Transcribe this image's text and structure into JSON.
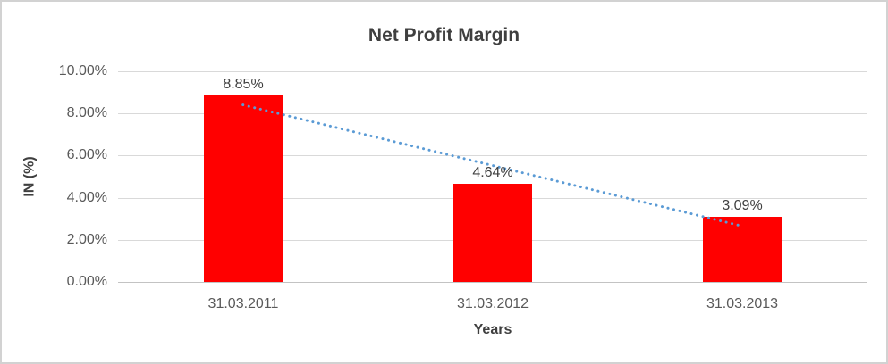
{
  "window": {
    "background": "#FFFFFF",
    "border_color": "#D2D2D2"
  },
  "chart_data": {
    "type": "bar",
    "title": "Net Profit Margin",
    "xlabel": "Years",
    "ylabel": "IN (%)",
    "categories": [
      "31.03.2011",
      "31.03.2012",
      "31.03.2013"
    ],
    "values": [
      8.85,
      4.64,
      3.09
    ],
    "value_labels": [
      "8.85%",
      "4.64%",
      "3.09%"
    ],
    "ylim": [
      0,
      10
    ],
    "ytick_values": [
      0,
      2,
      4,
      6,
      8,
      10
    ],
    "ytick_labels": [
      "0.00%",
      "2.00%",
      "4.00%",
      "6.00%",
      "8.00%",
      "10.00%"
    ],
    "grid": true,
    "legend": false,
    "bar_color": "#FF0000",
    "trendline": {
      "type": "linear",
      "style": "dotted",
      "color": "#5B9BD5"
    },
    "colors": {
      "title": "#3F3F3F",
      "tick_labels": "#595959",
      "data_labels": "#404040",
      "gridline": "#D9D9D9",
      "axis_line": "#C3C3C3"
    }
  }
}
